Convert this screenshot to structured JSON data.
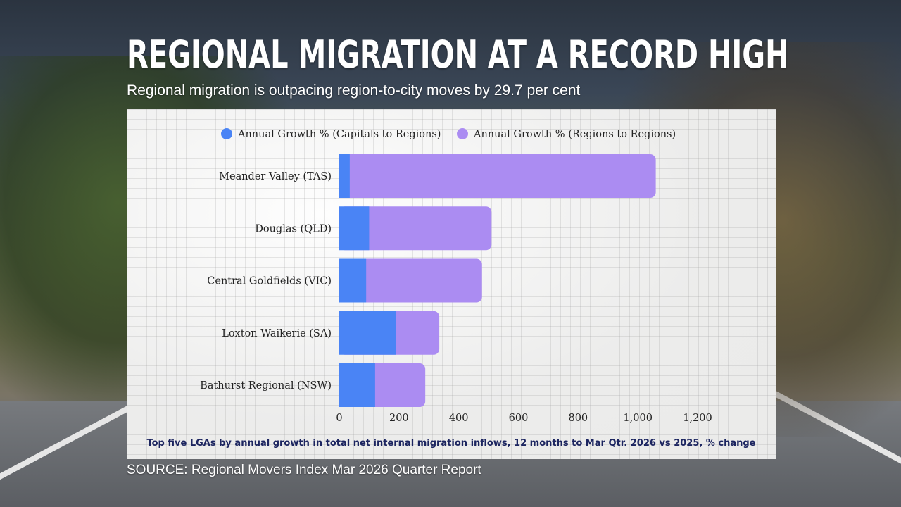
{
  "header": {
    "title": "REGIONAL MIGRATION AT A RECORD HIGH",
    "subtitle": "Regional migration is outpacing region-to-city moves by 29.7 per cent"
  },
  "footnote": "Top five LGAs by annual growth in total net internal migration inflows, 12 months to Mar Qtr. 2026 vs 2025, % change",
  "source": "SOURCE: Regional Movers Index Mar 2026 Quarter Report",
  "colors": {
    "capitals_to_regions": "#4a84f5",
    "regions_to_regions": "#ab8cf2"
  },
  "chart_data": {
    "type": "bar",
    "orientation": "horizontal",
    "stacked": true,
    "categories": [
      "Meander Valley (TAS)",
      "Douglas (QLD)",
      "Central Goldfields (VIC)",
      "Loxton Waikerie (SA)",
      "Bathurst Regional (NSW)"
    ],
    "series": [
      {
        "name": "Annual Growth % (Capitals to Regions)",
        "values": [
          35,
          100,
          90,
          190,
          120
        ]
      },
      {
        "name": "Annual Growth % (Regions to Regions)",
        "values": [
          1025,
          410,
          388,
          145,
          168
        ]
      }
    ],
    "xlim": [
      0,
      1200
    ],
    "xticks": [
      "0",
      "200",
      "400",
      "600",
      "800",
      "1,000",
      "1,200"
    ],
    "legend_position": "top-center",
    "grid": false
  }
}
